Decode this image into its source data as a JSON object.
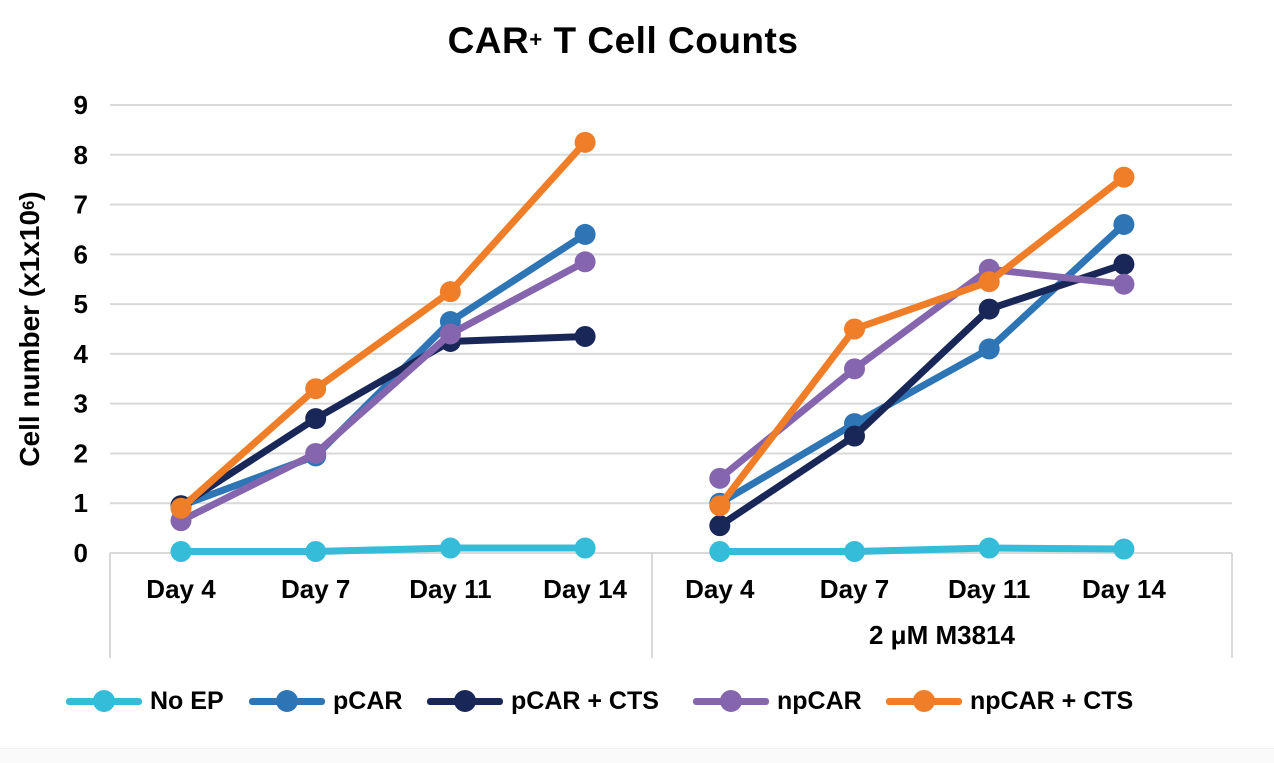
{
  "page": {
    "background_color": "#FFFFFF",
    "footer_strip_color": "#FAFAFA"
  },
  "chart_data": {
    "type": "line",
    "title": {
      "text_before_sup": "CAR",
      "sup": "+",
      "text_after_sup": " T Cell Counts"
    },
    "ylabel": {
      "text_before_sup": "Cell number (x1x10",
      "sup": "6",
      "text_after_sup": ")"
    },
    "ylim": [
      0,
      9
    ],
    "yticks": [
      0,
      1,
      2,
      3,
      4,
      5,
      6,
      7,
      8,
      9
    ],
    "grid": true,
    "gridline_color": "#D9D9D9",
    "axis_color": "#D9D9D9",
    "text_color": "#000000",
    "legend_position": "bottom",
    "panels": [
      {
        "label": "",
        "categories": [
          "Day 4",
          "Day 7",
          "Day 11",
          "Day 14"
        ]
      },
      {
        "label": "2 μM M3814",
        "categories": [
          "Day 4",
          "Day 7",
          "Day 11",
          "Day 14"
        ]
      }
    ],
    "series": [
      {
        "name": "No EP",
        "color": "#34BCD8",
        "values_panel_1": [
          0.03,
          0.03,
          0.1,
          0.1
        ],
        "values_panel_2": [
          0.03,
          0.03,
          0.1,
          0.08
        ]
      },
      {
        "name": "pCAR",
        "color": "#2E75B6",
        "values_panel_1": [
          0.95,
          1.95,
          4.65,
          6.4
        ],
        "values_panel_2": [
          1.0,
          2.6,
          4.1,
          6.6
        ]
      },
      {
        "name": "pCAR + CTS",
        "color": "#182757",
        "values_panel_1": [
          0.95,
          2.7,
          4.25,
          4.35
        ],
        "values_panel_2": [
          0.55,
          2.35,
          4.9,
          5.8
        ]
      },
      {
        "name": "npCAR",
        "color": "#8566AE",
        "values_panel_1": [
          0.65,
          2.0,
          4.4,
          5.85
        ],
        "values_panel_2": [
          1.5,
          3.7,
          5.7,
          5.4
        ]
      },
      {
        "name": "npCAR + CTS",
        "color": "#F07E28",
        "values_panel_1": [
          0.9,
          3.3,
          5.25,
          8.25
        ],
        "values_panel_2": [
          0.95,
          4.5,
          5.45,
          7.55
        ]
      }
    ]
  }
}
